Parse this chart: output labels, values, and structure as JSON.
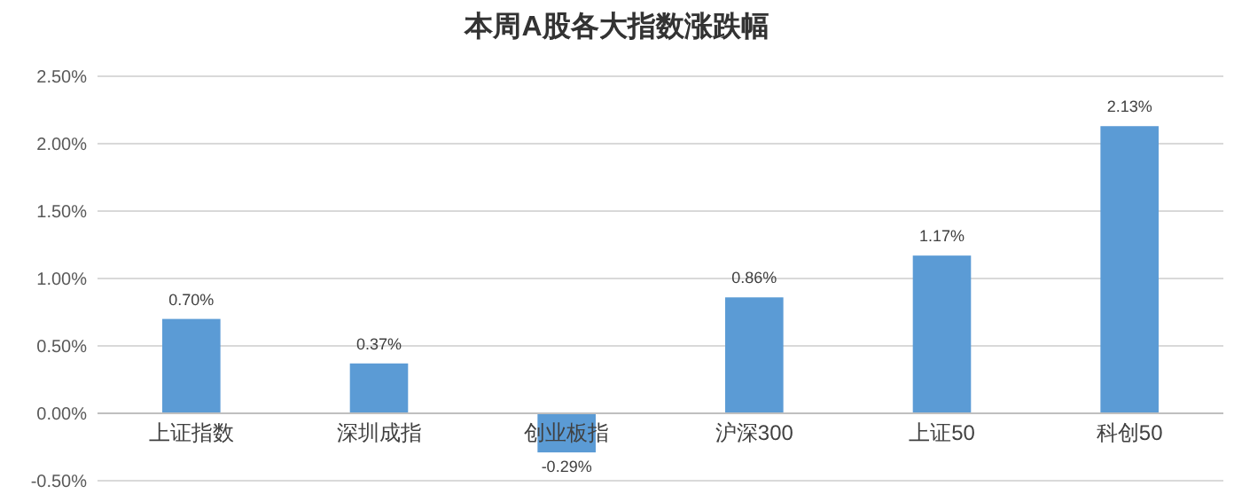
{
  "chart_data": {
    "type": "bar",
    "title": "本周A股各大指数涨跌幅",
    "categories": [
      "上证指数",
      "深圳成指",
      "创业板指",
      "沪深300",
      "上证50",
      "科创50"
    ],
    "values": [
      0.7,
      0.37,
      -0.29,
      0.86,
      1.17,
      2.13
    ],
    "value_labels": [
      "0.70%",
      "0.37%",
      "-0.29%",
      "0.86%",
      "1.17%",
      "2.13%"
    ],
    "color": "#5b9bd5",
    "ylim": [
      -0.5,
      2.5
    ],
    "yticks": [
      {
        "value": -0.5,
        "label": "-0.50%"
      },
      {
        "value": 0,
        "label": "0.00%"
      },
      {
        "value": 0.5,
        "label": "0.50%"
      },
      {
        "value": 1,
        "label": "1.00%"
      },
      {
        "value": 1.5,
        "label": "1.50%"
      },
      {
        "value": 2,
        "label": "2.00%"
      },
      {
        "value": 2.5,
        "label": "2.50%"
      }
    ],
    "grid": "y"
  }
}
